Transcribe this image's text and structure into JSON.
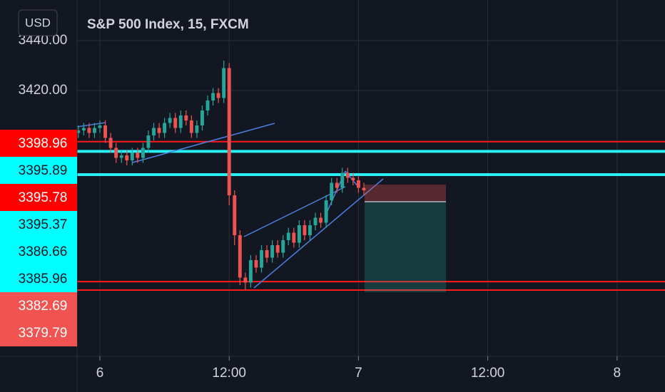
{
  "chart_data": {
    "type": "candlestick",
    "title": "S&P 500 Index, 15, FXCM",
    "currency": "USD",
    "xlim": [
      -2.12,
      52.45
    ],
    "ylim": [
      3313.43,
      3456.29
    ],
    "xticks": [
      {
        "value": 0,
        "label": "6"
      },
      {
        "value": 12,
        "label": "12:00"
      },
      {
        "value": 24,
        "label": "7"
      },
      {
        "value": 36,
        "label": "12:00"
      },
      {
        "value": 48,
        "label": "8"
      }
    ],
    "yticks": [
      {
        "value": 3440,
        "label": "3440.00"
      },
      {
        "value": 3420,
        "label": "3420.00"
      }
    ],
    "grid": true,
    "up_color": "#26a69a",
    "down_color": "#ef5350",
    "x": [
      -2,
      -1.5,
      -1,
      -0.5,
      0,
      0.5,
      1,
      1.5,
      2,
      2.5,
      3,
      3.5,
      4,
      4.5,
      5,
      5.5,
      6,
      6.5,
      7,
      7.5,
      8,
      8.5,
      9,
      9.5,
      10,
      10.5,
      11,
      11.5,
      12,
      12.5,
      13,
      13.5,
      14,
      14.5,
      15,
      15.5,
      16,
      16.5,
      17,
      17.5,
      18,
      18.5,
      19,
      19.5,
      20,
      20.5,
      21,
      21.5,
      22,
      22.5,
      23,
      23.5,
      24,
      24.5
    ],
    "open": [
      3403,
      3404,
      3405,
      3403,
      3405,
      3406,
      3401,
      3397,
      3393,
      3394,
      3392,
      3395,
      3393,
      3397,
      3402,
      3405,
      3403,
      3407,
      3409,
      3405,
      3410,
      3408,
      3403,
      3406,
      3412,
      3416,
      3419,
      3417,
      3429,
      3378,
      3362,
      3345,
      3343,
      3352,
      3349,
      3356,
      3353,
      3358,
      3355,
      3360,
      3363,
      3359,
      3366,
      3362,
      3366,
      3369,
      3367,
      3376,
      3383,
      3381,
      3387,
      3385,
      3384,
      3381
    ],
    "high": [
      3406,
      3407,
      3407,
      3407,
      3408,
      3408,
      3403,
      3399,
      3396,
      3396,
      3397,
      3397,
      3399,
      3404,
      3407,
      3407,
      3409,
      3411,
      3411,
      3412,
      3412,
      3410,
      3408,
      3414,
      3418,
      3421,
      3421,
      3432,
      3431,
      3380,
      3364,
      3347,
      3354,
      3354,
      3358,
      3358,
      3360,
      3360,
      3362,
      3365,
      3365,
      3368,
      3368,
      3368,
      3371,
      3371,
      3378,
      3385,
      3385,
      3389,
      3389,
      3387,
      3386,
      3383
    ],
    "low": [
      3401,
      3402,
      3401,
      3401,
      3403,
      3399,
      3395,
      3391,
      3391,
      3390,
      3390,
      3391,
      3391,
      3395,
      3400,
      3401,
      3401,
      3405,
      3403,
      3403,
      3406,
      3401,
      3401,
      3404,
      3410,
      3414,
      3415,
      3415,
      3374,
      3358,
      3342,
      3340,
      3341,
      3347,
      3347,
      3351,
      3351,
      3353,
      3353,
      3358,
      3357,
      3357,
      3360,
      3360,
      3364,
      3365,
      3365,
      3374,
      3379,
      3379,
      3383,
      3382,
      3379,
      3378
    ],
    "close": [
      3404,
      3405,
      3403,
      3405,
      3406,
      3401,
      3397,
      3393,
      3394,
      3392,
      3395,
      3393,
      3397,
      3402,
      3405,
      3403,
      3407,
      3409,
      3405,
      3410,
      3408,
      3403,
      3406,
      3412,
      3416,
      3419,
      3417,
      3429,
      3378,
      3362,
      3345,
      3343,
      3352,
      3349,
      3356,
      3353,
      3358,
      3355,
      3360,
      3363,
      3359,
      3366,
      3362,
      3366,
      3369,
      3367,
      3376,
      3383,
      3381,
      3387,
      3385,
      3384,
      3381,
      3380
    ],
    "hlines": [
      {
        "value": 3399.5,
        "color": "#ff1a1a"
      },
      {
        "value": 3395.6,
        "color": "#28f0f5"
      },
      {
        "value": 3386.3,
        "color": "#28f0f5"
      },
      {
        "value": 3343.4,
        "color": "#ff1a1a"
      },
      {
        "value": 3340.0,
        "color": "#ff1a1a"
      }
    ],
    "price_labels": [
      {
        "value": 3398.96,
        "label": "3398.96",
        "color": "#ff0000"
      },
      {
        "value": 3395.89,
        "label": "3395.89",
        "color": "#00ffff"
      },
      {
        "value": 3395.78,
        "label": "3395.78",
        "color": "#ff0000"
      },
      {
        "value": 3395.37,
        "label": "3395.37",
        "color": "#00ffff"
      },
      {
        "value": 3386.66,
        "label": "3386.66",
        "color": "#00ffff"
      },
      {
        "value": 3385.96,
        "label": "3385.96",
        "color": "#00ffff"
      },
      {
        "value": 3382.69,
        "label": "3382.69",
        "color": "#f05350"
      },
      {
        "value": 3379.79,
        "label": "3379.79",
        "color": "#f05350"
      }
    ]
  }
}
